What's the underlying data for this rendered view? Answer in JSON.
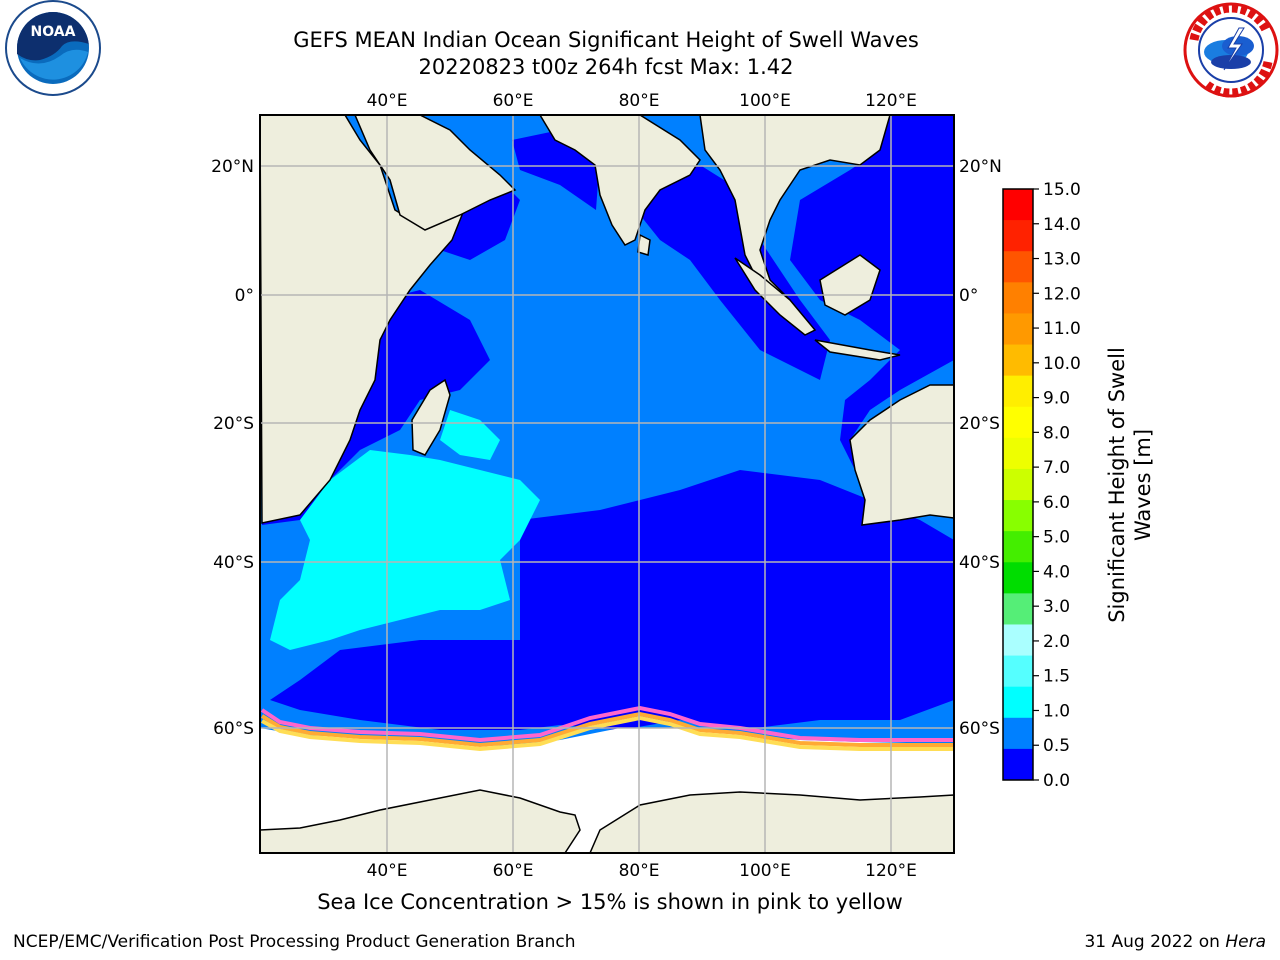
{
  "header": {
    "title_line1": "GEFS MEAN Indian Ocean Significant Height of Swell Waves",
    "title_line2": "20220823 t00z 264h fcst   Max: 1.42"
  },
  "logos": {
    "left": {
      "icon": "noaa-logo-icon",
      "text": "NOAA"
    },
    "right": {
      "icon": "national-weather-service-logo-icon"
    }
  },
  "map": {
    "projection": "plate-carree",
    "lon_range": [
      20,
      130
    ],
    "lat_range": [
      -73,
      27
    ],
    "lon_ticks": [
      "40°E",
      "60°E",
      "80°E",
      "100°E",
      "120°E"
    ],
    "lat_ticks": [
      "20°N",
      "0°",
      "20°S",
      "40°S",
      "60°S"
    ],
    "grid": true,
    "colors": {
      "land": "#eeeedd",
      "sea_ice_region": "#ffffff",
      "swell_0_0.5": "#0000ff",
      "swell_0.5_1.0": "#0080ff",
      "swell_1.0_1.5": "#00ffff",
      "ice_edge": [
        "#ff66cc",
        "#ffaa33",
        "#ffdd55"
      ]
    }
  },
  "colorbar": {
    "label_line1": "Significant Height of Swell",
    "label_line2": "Waves [m]",
    "ticks": [
      "15.0",
      "14.0",
      "13.0",
      "12.0",
      "11.0",
      "10.0",
      "9.0",
      "8.0",
      "7.0",
      "6.0",
      "5.0",
      "4.0",
      "3.0",
      "2.0",
      "1.5",
      "1.0",
      "0.5",
      "0.0"
    ],
    "colors_top_to_bottom": [
      "#ff0000",
      "#ff2200",
      "#ff5500",
      "#ff8000",
      "#ff9900",
      "#ffbb00",
      "#ffee00",
      "#ffff00",
      "#eeff00",
      "#ccff00",
      "#88ff00",
      "#44ee00",
      "#00dd00",
      "#55ee77",
      "#aaffff",
      "#55ffff",
      "#00ffff",
      "#0080ff",
      "#0000ff"
    ]
  },
  "footer": {
    "note": "Sea Ice Concentration > 15% is shown in pink to yellow",
    "credit": "NCEP/EMC/Verification Post Processing Product Generation Branch",
    "date": "31 Aug 2022 on ",
    "machine": "Hera"
  }
}
